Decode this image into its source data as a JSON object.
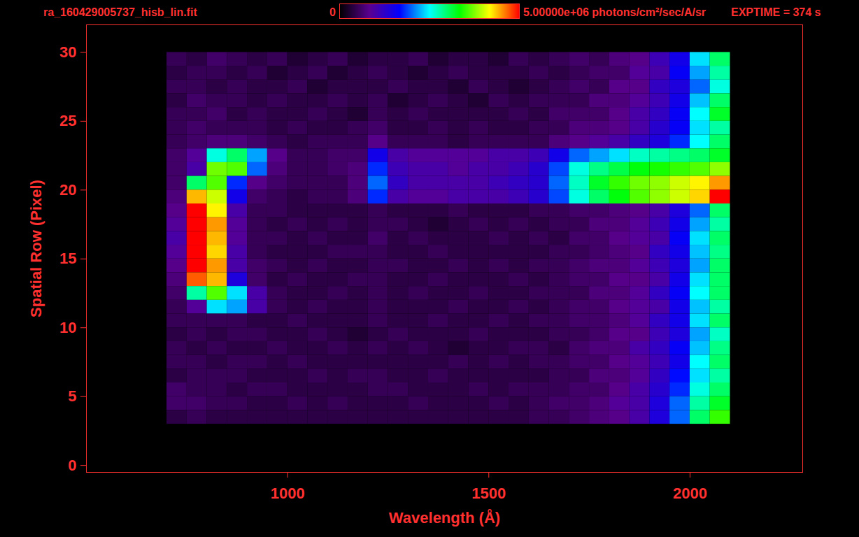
{
  "chart_data": {
    "type": "heatmap",
    "title": "ra_160429005737_hisb_lin.fit",
    "x_label": "Wavelength (Å)",
    "y_label": "Spatial Row (Pixel)",
    "annotation": "EXPTIME = 374 s",
    "xlim": [
      500,
      2280
    ],
    "xticks": [
      1000,
      1500,
      2000
    ],
    "ylim": [
      -0.5,
      32
    ],
    "yticks": [
      0,
      5,
      10,
      15,
      20,
      25,
      30
    ],
    "colorbar": {
      "range": [
        0,
        5000000.0
      ],
      "ticks": [
        0,
        {
          "value": 5000000.0,
          "label": "5.00000e+06"
        }
      ],
      "label": "photons/cm²/sec/A/sr"
    },
    "colors": [
      "#000000",
      "#5a0090",
      "#0000ff",
      "#00ffff",
      "#00ff00",
      "#ffff00",
      "#ff0000"
    ],
    "wavelength_bins": [
      700,
      750,
      800,
      850,
      900,
      950,
      1000,
      1050,
      1100,
      1150,
      1200,
      1250,
      1300,
      1350,
      1400,
      1450,
      1500,
      1550,
      1600,
      1650,
      1700,
      1750,
      1800,
      1850,
      1900,
      1950,
      2000,
      2050,
      2100
    ],
    "rows": [
      29,
      28,
      27,
      26,
      25,
      24,
      23,
      22,
      21,
      20,
      19,
      18,
      17,
      16,
      15,
      14,
      13,
      12,
      11,
      10,
      9,
      8,
      7,
      6,
      5,
      4,
      3
    ],
    "cells": [
      [
        500000.0,
        400000.0,
        600000.0,
        500000.0,
        400000.0,
        500000.0,
        300000.0,
        400000.0,
        500000.0,
        300000.0,
        400000.0,
        400000.0,
        500000.0,
        300000.0,
        400000.0,
        400000.0,
        300000.0,
        500000.0,
        400000.0,
        500000.0,
        600000.0,
        500000.0,
        700000.0,
        800000.0,
        1100000.0,
        1500000.0,
        2400000.0,
        3000000.0
      ],
      [
        400000.0,
        500000.0,
        500000.0,
        400000.0,
        500000.0,
        300000.0,
        400000.0,
        500000.0,
        300000.0,
        400000.0,
        500000.0,
        400000.0,
        300000.0,
        400000.0,
        500000.0,
        400000.0,
        400000.0,
        400000.0,
        500000.0,
        400000.0,
        500000.0,
        600000.0,
        600000.0,
        900000.0,
        1000000.0,
        1600000.0,
        2200000.0,
        2800000.0
      ],
      [
        500000.0,
        500000.0,
        400000.0,
        500000.0,
        400000.0,
        400000.0,
        500000.0,
        300000.0,
        400000.0,
        400000.0,
        400000.0,
        500000.0,
        400000.0,
        400000.0,
        300000.0,
        500000.0,
        400000.0,
        300000.0,
        400000.0,
        500000.0,
        600000.0,
        500000.0,
        800000.0,
        800000.0,
        1200000.0,
        1400000.0,
        2000000.0,
        2600000.0
      ],
      [
        400000.0,
        600000.0,
        500000.0,
        500000.0,
        400000.0,
        500000.0,
        400000.0,
        400000.0,
        500000.0,
        400000.0,
        500000.0,
        300000.0,
        400000.0,
        500000.0,
        400000.0,
        300000.0,
        500000.0,
        400000.0,
        500000.0,
        500000.0,
        500000.0,
        700000.0,
        700000.0,
        900000.0,
        1100000.0,
        1500000.0,
        2300000.0,
        3000000.0
      ],
      [
        500000.0,
        500000.0,
        600000.0,
        400000.0,
        500000.0,
        400000.0,
        400000.0,
        500000.0,
        400000.0,
        300000.0,
        500000.0,
        400000.0,
        500000.0,
        400000.0,
        400000.0,
        400000.0,
        400000.0,
        500000.0,
        400000.0,
        600000.0,
        600000.0,
        600000.0,
        800000.0,
        1000000.0,
        1200000.0,
        1600000.0,
        2500000.0,
        3200000.0
      ],
      [
        500000.0,
        600000.0,
        500000.0,
        500000.0,
        500000.0,
        400000.0,
        500000.0,
        400000.0,
        400000.0,
        500000.0,
        600000.0,
        400000.0,
        400000.0,
        500000.0,
        400000.0,
        500000.0,
        400000.0,
        400000.0,
        500000.0,
        500000.0,
        700000.0,
        700000.0,
        800000.0,
        1000000.0,
        1300000.0,
        1600000.0,
        2400000.0,
        2800000.0
      ],
      [
        500000.0,
        600000.0,
        700000.0,
        700000.0,
        600000.0,
        500000.0,
        400000.0,
        500000.0,
        500000.0,
        500000.0,
        800000.0,
        500000.0,
        500000.0,
        500000.0,
        400000.0,
        500000.0,
        500000.0,
        500000.0,
        500000.0,
        700000.0,
        800000.0,
        900000.0,
        1000000.0,
        1200000.0,
        1400000.0,
        1800000.0,
        2500000.0,
        3000000.0
      ],
      [
        600000.0,
        900000.0,
        2600000.0,
        3000000.0,
        2200000.0,
        800000.0,
        500000.0,
        500000.0,
        600000.0,
        600000.0,
        1500000.0,
        1000000.0,
        900000.0,
        900000.0,
        900000.0,
        900000.0,
        1000000.0,
        1000000.0,
        1100000.0,
        1500000.0,
        2000000.0,
        2200000.0,
        2400000.0,
        2700000.0,
        2800000.0,
        2900000.0,
        3000000.0,
        3200000.0
      ],
      [
        600000.0,
        1000000.0,
        3700000.0,
        3600000.0,
        2000000.0,
        700000.0,
        500000.0,
        500000.0,
        600000.0,
        700000.0,
        1800000.0,
        1100000.0,
        1000000.0,
        1000000.0,
        900000.0,
        1000000.0,
        1000000.0,
        1100000.0,
        1300000.0,
        1900000.0,
        2600000.0,
        2900000.0,
        3100000.0,
        3300000.0,
        3400000.0,
        3500000.0,
        3600000.0,
        3800000.0
      ],
      [
        600000.0,
        3000000.0,
        3600000.0,
        1800000.0,
        800000.0,
        600000.0,
        500000.0,
        500000.0,
        500000.0,
        700000.0,
        2000000.0,
        1200000.0,
        1000000.0,
        1000000.0,
        1000000.0,
        1000000.0,
        1100000.0,
        1200000.0,
        1300000.0,
        2000000.0,
        2700000.0,
        3200000.0,
        3500000.0,
        3700000.0,
        3800000.0,
        4000000.0,
        4200000.0,
        4500000.0
      ],
      [
        700000.0,
        4400000.0,
        4000000.0,
        1500000.0,
        600000.0,
        500000.0,
        400000.0,
        500000.0,
        500000.0,
        700000.0,
        1800000.0,
        1000000.0,
        900000.0,
        900000.0,
        1000000.0,
        1000000.0,
        1000000.0,
        1100000.0,
        1300000.0,
        1900000.0,
        2600000.0,
        3000000.0,
        3300000.0,
        3600000.0,
        3800000.0,
        4000000.0,
        4300000.0,
        5000000.0
      ],
      [
        800000.0,
        5000000.0,
        4200000.0,
        1000000.0,
        500000.0,
        500000.0,
        400000.0,
        400000.0,
        400000.0,
        400000.0,
        500000.0,
        400000.0,
        400000.0,
        400000.0,
        500000.0,
        400000.0,
        400000.0,
        400000.0,
        500000.0,
        500000.0,
        600000.0,
        600000.0,
        700000.0,
        800000.0,
        1000000.0,
        1400000.0,
        2000000.0,
        3000000.0
      ],
      [
        900000.0,
        5000000.0,
        4500000.0,
        900000.0,
        500000.0,
        400000.0,
        500000.0,
        400000.0,
        500000.0,
        400000.0,
        500000.0,
        500000.0,
        400000.0,
        300000.0,
        400000.0,
        500000.0,
        400000.0,
        500000.0,
        400000.0,
        500000.0,
        500000.0,
        700000.0,
        700000.0,
        900000.0,
        1100000.0,
        1500000.0,
        2200000.0,
        2800000.0
      ],
      [
        1000000.0,
        5000000.0,
        4400000.0,
        900000.0,
        500000.0,
        500000.0,
        400000.0,
        500000.0,
        400000.0,
        400000.0,
        600000.0,
        400000.0,
        500000.0,
        400000.0,
        400000.0,
        400000.0,
        500000.0,
        400000.0,
        500000.0,
        400000.0,
        600000.0,
        600000.0,
        800000.0,
        900000.0,
        1000000.0,
        1600000.0,
        2400000.0,
        3000000.0
      ],
      [
        900000.0,
        5000000.0,
        4300000.0,
        1000000.0,
        500000.0,
        400000.0,
        400000.0,
        400000.0,
        500000.0,
        500000.0,
        500000.0,
        400000.0,
        400000.0,
        500000.0,
        400000.0,
        400000.0,
        400000.0,
        400000.0,
        400000.0,
        500000.0,
        500000.0,
        600000.0,
        700000.0,
        800000.0,
        1200000.0,
        1500000.0,
        2300000.0,
        2900000.0
      ],
      [
        800000.0,
        5000000.0,
        4500000.0,
        1000000.0,
        600000.0,
        500000.0,
        400000.0,
        500000.0,
        400000.0,
        400000.0,
        500000.0,
        500000.0,
        400000.0,
        400000.0,
        500000.0,
        400000.0,
        500000.0,
        400000.0,
        500000.0,
        500000.0,
        600000.0,
        700000.0,
        700000.0,
        900000.0,
        1100000.0,
        1400000.0,
        2200000.0,
        3000000.0
      ],
      [
        700000.0,
        4700000.0,
        4400000.0,
        1400000.0,
        600000.0,
        400000.0,
        500000.0,
        400000.0,
        400000.0,
        500000.0,
        500000.0,
        400000.0,
        400000.0,
        500000.0,
        400000.0,
        400000.0,
        400000.0,
        500000.0,
        400000.0,
        500000.0,
        600000.0,
        600000.0,
        800000.0,
        800000.0,
        1000000.0,
        1500000.0,
        2400000.0,
        3000000.0
      ],
      [
        600000.0,
        2800000.0,
        3600000.0,
        2400000.0,
        1000000.0,
        500000.0,
        400000.0,
        400000.0,
        500000.0,
        400000.0,
        500000.0,
        400000.0,
        500000.0,
        400000.0,
        400000.0,
        500000.0,
        400000.0,
        400000.0,
        500000.0,
        500000.0,
        500000.0,
        700000.0,
        700000.0,
        900000.0,
        1200000.0,
        1600000.0,
        2500000.0,
        3000000.0
      ],
      [
        500000.0,
        900000.0,
        2400000.0,
        2200000.0,
        1000000.0,
        500000.0,
        400000.0,
        500000.0,
        400000.0,
        400000.0,
        500000.0,
        400000.0,
        400000.0,
        400000.0,
        500000.0,
        400000.0,
        400000.0,
        500000.0,
        400000.0,
        500000.0,
        600000.0,
        600000.0,
        800000.0,
        900000.0,
        1000000.0,
        1500000.0,
        2300000.0,
        2800000.0
      ],
      [
        500000.0,
        500000.0,
        500000.0,
        500000.0,
        400000.0,
        400000.0,
        500000.0,
        400000.0,
        400000.0,
        400000.0,
        500000.0,
        400000.0,
        400000.0,
        500000.0,
        400000.0,
        400000.0,
        500000.0,
        400000.0,
        500000.0,
        500000.0,
        600000.0,
        600000.0,
        700000.0,
        900000.0,
        1200000.0,
        1500000.0,
        2400000.0,
        3000000.0
      ],
      [
        400000.0,
        500000.0,
        400000.0,
        500000.0,
        500000.0,
        400000.0,
        400000.0,
        500000.0,
        400000.0,
        300000.0,
        400000.0,
        500000.0,
        400000.0,
        400000.0,
        400000.0,
        500000.0,
        400000.0,
        400000.0,
        400000.0,
        500000.0,
        500000.0,
        600000.0,
        800000.0,
        800000.0,
        1100000.0,
        1400000.0,
        2200000.0,
        2700000.0
      ],
      [
        500000.0,
        400000.0,
        500000.0,
        400000.0,
        400000.0,
        500000.0,
        400000.0,
        400000.0,
        500000.0,
        400000.0,
        500000.0,
        400000.0,
        500000.0,
        400000.0,
        300000.0,
        400000.0,
        400000.0,
        500000.0,
        500000.0,
        400000.0,
        600000.0,
        700000.0,
        700000.0,
        1000000.0,
        1200000.0,
        1600000.0,
        2300000.0,
        2900000.0
      ],
      [
        500000.0,
        500000.0,
        400000.0,
        500000.0,
        500000.0,
        400000.0,
        500000.0,
        400000.0,
        400000.0,
        400000.0,
        400000.0,
        400000.0,
        400000.0,
        400000.0,
        500000.0,
        400000.0,
        500000.0,
        400000.0,
        500000.0,
        500000.0,
        600000.0,
        600000.0,
        800000.0,
        900000.0,
        1100000.0,
        1500000.0,
        2500000.0,
        3000000.0
      ],
      [
        400000.0,
        500000.0,
        500000.0,
        500000.0,
        400000.0,
        400000.0,
        400000.0,
        500000.0,
        400000.0,
        500000.0,
        500000.0,
        400000.0,
        400000.0,
        500000.0,
        400000.0,
        400000.0,
        400000.0,
        400000.0,
        400000.0,
        500000.0,
        500000.0,
        700000.0,
        700000.0,
        900000.0,
        1200000.0,
        1700000.0,
        2400000.0,
        2800000.0
      ],
      [
        600000.0,
        500000.0,
        500000.0,
        400000.0,
        500000.0,
        500000.0,
        400000.0,
        400000.0,
        400000.0,
        400000.0,
        500000.0,
        500000.0,
        400000.0,
        400000.0,
        400000.0,
        500000.0,
        400000.0,
        500000.0,
        500000.0,
        500000.0,
        600000.0,
        600000.0,
        800000.0,
        1000000.0,
        1300000.0,
        1800000.0,
        2600000.0,
        3000000.0
      ],
      [
        600000.0,
        600000.0,
        500000.0,
        500000.0,
        400000.0,
        400000.0,
        500000.0,
        400000.0,
        500000.0,
        400000.0,
        400000.0,
        400000.0,
        500000.0,
        400000.0,
        400000.0,
        400000.0,
        500000.0,
        400000.0,
        500000.0,
        600000.0,
        600000.0,
        700000.0,
        900000.0,
        1000000.0,
        1400000.0,
        2000000.0,
        2800000.0,
        3200000.0
      ],
      [
        400000.0,
        500000.0,
        400000.0,
        400000.0,
        400000.0,
        400000.0,
        400000.0,
        400000.0,
        400000.0,
        400000.0,
        400000.0,
        400000.0,
        400000.0,
        400000.0,
        400000.0,
        400000.0,
        400000.0,
        400000.0,
        500000.0,
        500000.0,
        600000.0,
        700000.0,
        800000.0,
        1000000.0,
        1400000.0,
        2000000.0,
        3000000.0,
        3500000.0
      ]
    ]
  }
}
